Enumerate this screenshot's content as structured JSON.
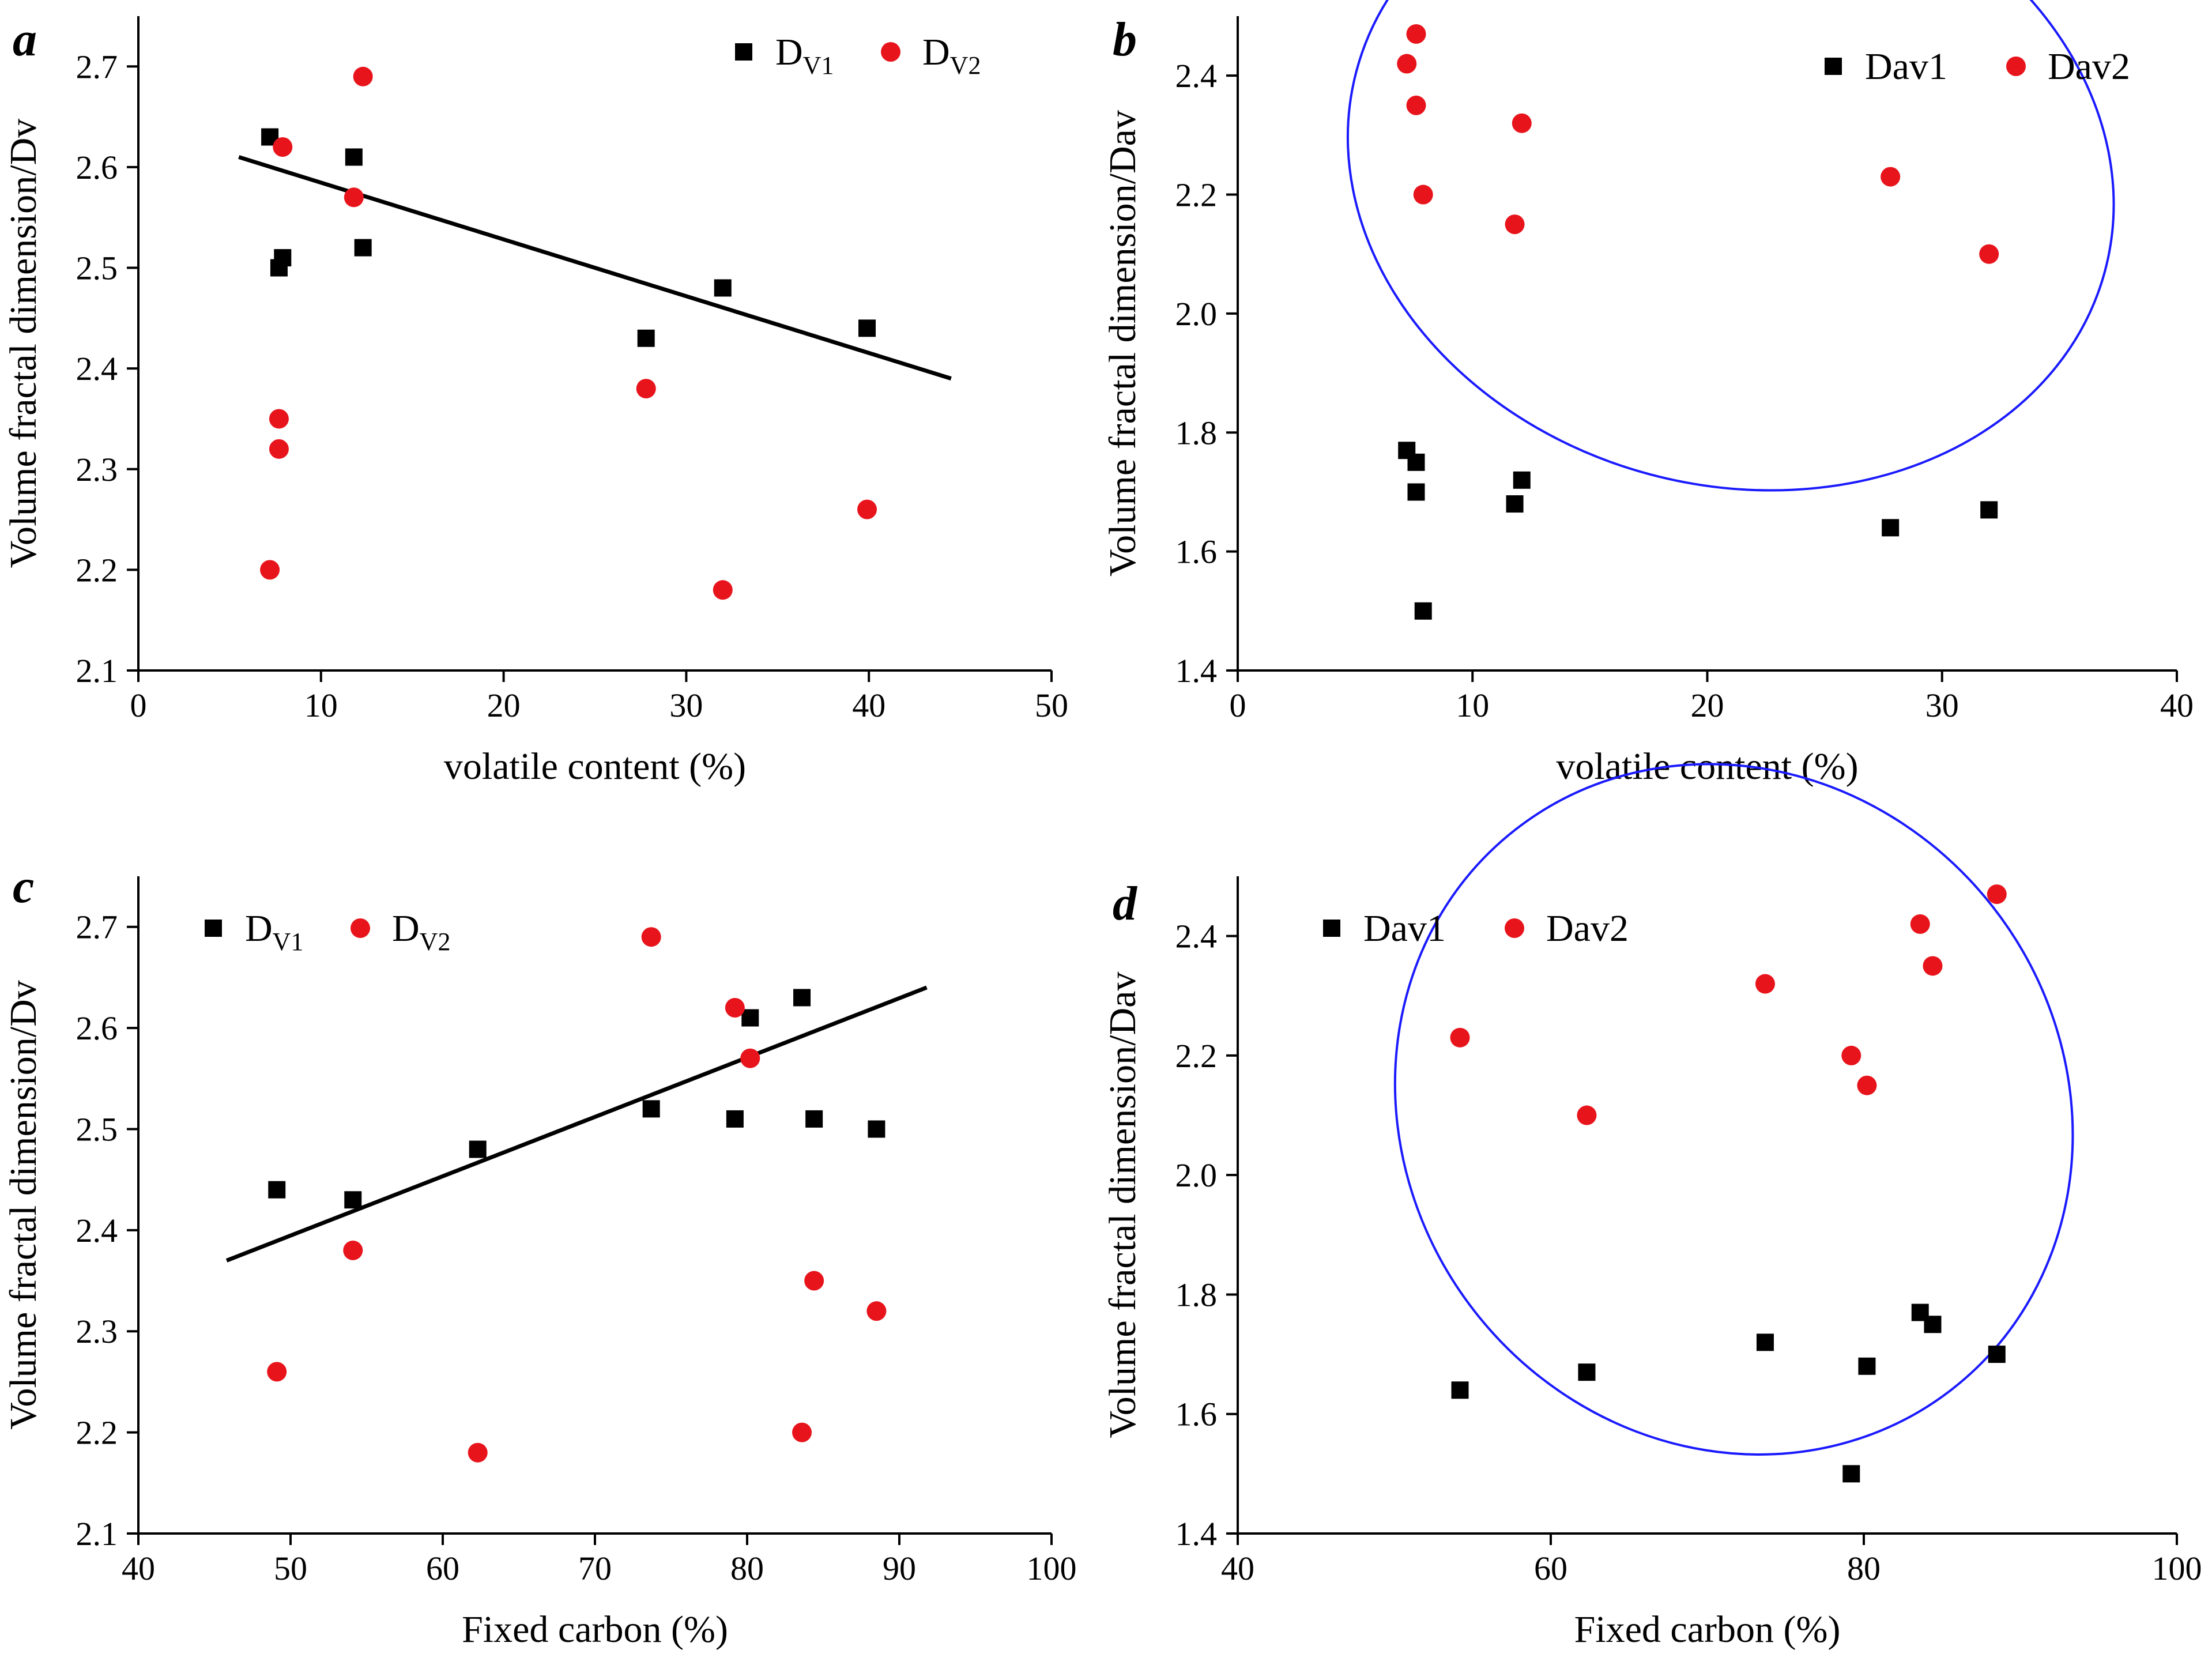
{
  "chart_data": [
    {
      "panel_label": "a",
      "type": "scatter",
      "xlabel": "volatile content (%)",
      "ylabel": "Volume fractal dimension/Dv",
      "xlim": [
        0,
        50
      ],
      "ylim": [
        2.1,
        2.75
      ],
      "xticks": [
        "0",
        "10",
        "20",
        "30",
        "40",
        "50"
      ],
      "yticks": [
        "2.1",
        "2.2",
        "2.3",
        "2.4",
        "2.5",
        "2.6",
        "2.7"
      ],
      "legend_position": "top-right",
      "series": [
        {
          "name": "DV1",
          "label_main": "D",
          "label_sub": "V1",
          "marker": "square",
          "color": "#000000",
          "points": [
            [
              7.2,
              2.63
            ],
            [
              7.7,
              2.5
            ],
            [
              7.9,
              2.51
            ],
            [
              11.8,
              2.61
            ],
            [
              12.3,
              2.52
            ],
            [
              27.8,
              2.43
            ],
            [
              32.0,
              2.48
            ],
            [
              39.9,
              2.44
            ]
          ]
        },
        {
          "name": "DV2",
          "label_main": "D",
          "label_sub": "V2",
          "marker": "circle",
          "color": "#e8141c",
          "points": [
            [
              7.2,
              2.2
            ],
            [
              7.7,
              2.35
            ],
            [
              7.7,
              2.32
            ],
            [
              7.9,
              2.62
            ],
            [
              11.8,
              2.57
            ],
            [
              12.3,
              2.69
            ],
            [
              27.8,
              2.38
            ],
            [
              32.0,
              2.18
            ],
            [
              39.9,
              2.26
            ]
          ]
        }
      ],
      "trendline": {
        "series": "DV1",
        "x": [
          5.5,
          44.5
        ],
        "y": [
          2.61,
          2.39
        ]
      }
    },
    {
      "panel_label": "b",
      "type": "scatter",
      "xlabel": "volatile content (%)",
      "ylabel": "Volume fractal dimension/Dav",
      "xlim": [
        0,
        40
      ],
      "ylim": [
        1.4,
        2.5
      ],
      "xticks": [
        "0",
        "10",
        "20",
        "30",
        "40"
      ],
      "yticks": [
        "1.4",
        "1.6",
        "1.8",
        "2.0",
        "2.2",
        "2.4"
      ],
      "legend_position": "top-right",
      "series": [
        {
          "name": "Dav1",
          "label_main": "Dav1",
          "label_sub": "",
          "marker": "square",
          "color": "#000000",
          "points": [
            [
              7.2,
              1.77
            ],
            [
              7.6,
              1.75
            ],
            [
              7.6,
              1.7
            ],
            [
              7.9,
              1.5
            ],
            [
              11.8,
              1.68
            ],
            [
              12.1,
              1.72
            ],
            [
              27.8,
              1.64
            ],
            [
              32.0,
              1.67
            ]
          ]
        },
        {
          "name": "Dav2",
          "label_main": "Dav2",
          "label_sub": "",
          "marker": "circle",
          "color": "#e8141c",
          "points": [
            [
              7.2,
              2.42
            ],
            [
              7.6,
              2.47
            ],
            [
              7.6,
              2.35
            ],
            [
              7.9,
              2.2
            ],
            [
              11.8,
              2.15
            ],
            [
              12.1,
              2.32
            ],
            [
              27.8,
              2.23
            ],
            [
              32.0,
              2.1
            ]
          ]
        }
      ],
      "highlight_ellipse": {
        "center": [
          21,
          2.24
        ],
        "rx_data": 16.5,
        "ry_data": 0.24,
        "rotation_deg": 15,
        "color": "#1a1aff"
      }
    },
    {
      "panel_label": "c",
      "type": "scatter",
      "xlabel": "Fixed carbon (%)",
      "ylabel": "Volume fractal dimension/Dv",
      "xlim": [
        40,
        100
      ],
      "ylim": [
        2.1,
        2.75
      ],
      "xticks": [
        "40",
        "50",
        "60",
        "70",
        "80",
        "90",
        "100"
      ],
      "yticks": [
        "2.1",
        "2.2",
        "2.3",
        "2.4",
        "2.5",
        "2.6",
        "2.7"
      ],
      "legend_position": "top-left",
      "series": [
        {
          "name": "DV1",
          "label_main": "D",
          "label_sub": "V1",
          "marker": "square",
          "color": "#000000",
          "points": [
            [
              49.1,
              2.44
            ],
            [
              54.1,
              2.43
            ],
            [
              62.3,
              2.48
            ],
            [
              73.7,
              2.52
            ],
            [
              79.2,
              2.51
            ],
            [
              80.2,
              2.61
            ],
            [
              83.6,
              2.63
            ],
            [
              84.4,
              2.51
            ],
            [
              88.5,
              2.5
            ]
          ]
        },
        {
          "name": "DV2",
          "label_main": "D",
          "label_sub": "V2",
          "marker": "circle",
          "color": "#e8141c",
          "points": [
            [
              49.1,
              2.26
            ],
            [
              54.1,
              2.38
            ],
            [
              62.3,
              2.18
            ],
            [
              73.7,
              2.69
            ],
            [
              79.2,
              2.62
            ],
            [
              80.2,
              2.57
            ],
            [
              83.6,
              2.2
            ],
            [
              84.4,
              2.35
            ],
            [
              88.5,
              2.32
            ]
          ]
        }
      ],
      "trendline": {
        "series": "DV1",
        "x": [
          45.8,
          91.8
        ],
        "y": [
          2.37,
          2.64
        ]
      }
    },
    {
      "panel_label": "d",
      "type": "scatter",
      "xlabel": "Fixed carbon (%)",
      "ylabel": "Volume fractal dimension/Dav",
      "xlim": [
        40,
        100
      ],
      "ylim": [
        1.4,
        2.5
      ],
      "xticks": [
        "40",
        "60",
        "80",
        "100"
      ],
      "yticks": [
        "1.4",
        "1.6",
        "1.8",
        "2.0",
        "2.2",
        "2.4"
      ],
      "legend_position": "top-left",
      "series": [
        {
          "name": "Dav1",
          "label_main": "Dav1",
          "label_sub": "",
          "marker": "square",
          "color": "#000000",
          "points": [
            [
              54.2,
              1.64
            ],
            [
              62.3,
              1.67
            ],
            [
              73.7,
              1.72
            ],
            [
              79.2,
              1.5
            ],
            [
              80.2,
              1.68
            ],
            [
              83.6,
              1.77
            ],
            [
              84.4,
              1.75
            ],
            [
              88.5,
              1.7
            ]
          ]
        },
        {
          "name": "Dav2",
          "label_main": "Dav2",
          "label_sub": "",
          "marker": "circle",
          "color": "#e8141c",
          "points": [
            [
              54.2,
              2.23
            ],
            [
              62.3,
              2.1
            ],
            [
              73.7,
              2.32
            ],
            [
              79.2,
              2.2
            ],
            [
              80.2,
              2.15
            ],
            [
              83.6,
              2.42
            ],
            [
              84.4,
              2.35
            ],
            [
              88.5,
              2.47
            ]
          ]
        }
      ],
      "highlight_ellipse": {
        "center": [
          71.7,
          2.11
        ],
        "rx_data": 21,
        "ry_data": 0.27,
        "rotation_deg": -38,
        "color": "#1a1aff"
      }
    }
  ]
}
